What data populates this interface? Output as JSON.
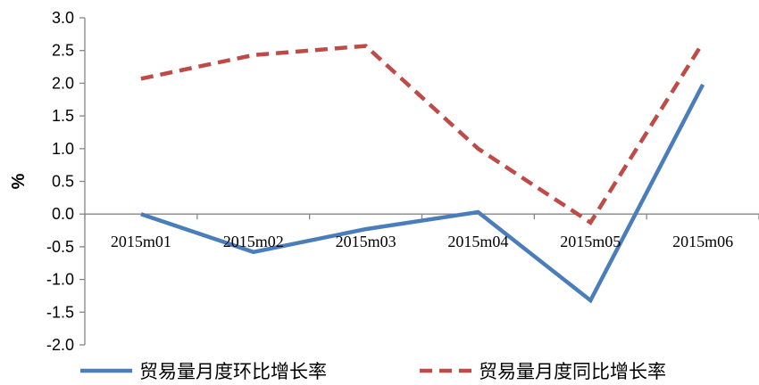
{
  "chart_data": {
    "type": "line",
    "categories": [
      "2015m01",
      "2015m02",
      "2015m03",
      "2015m04",
      "2015m05",
      "2015m06"
    ],
    "series": [
      {
        "name": "贸易量月度环比增长率",
        "values": [
          0.0,
          -0.58,
          -0.23,
          0.03,
          -1.32,
          1.98
        ],
        "color": "#4a7ebb",
        "dash": "solid"
      },
      {
        "name": "贸易量月度同比增长率",
        "values": [
          2.07,
          2.43,
          2.57,
          1.0,
          -0.13,
          2.62
        ],
        "color": "#be4b48",
        "dash": "dashed"
      }
    ],
    "title": "",
    "xlabel": "",
    "ylabel": "%",
    "ylim": [
      -2.0,
      3.0
    ],
    "yticks": [
      "3.0",
      "2.5",
      "2.0",
      "1.5",
      "1.0",
      "0.5",
      "0.0",
      "-0.5",
      "-1.0",
      "-1.5",
      "-2.0"
    ],
    "grid": false,
    "legend_position": "bottom"
  }
}
